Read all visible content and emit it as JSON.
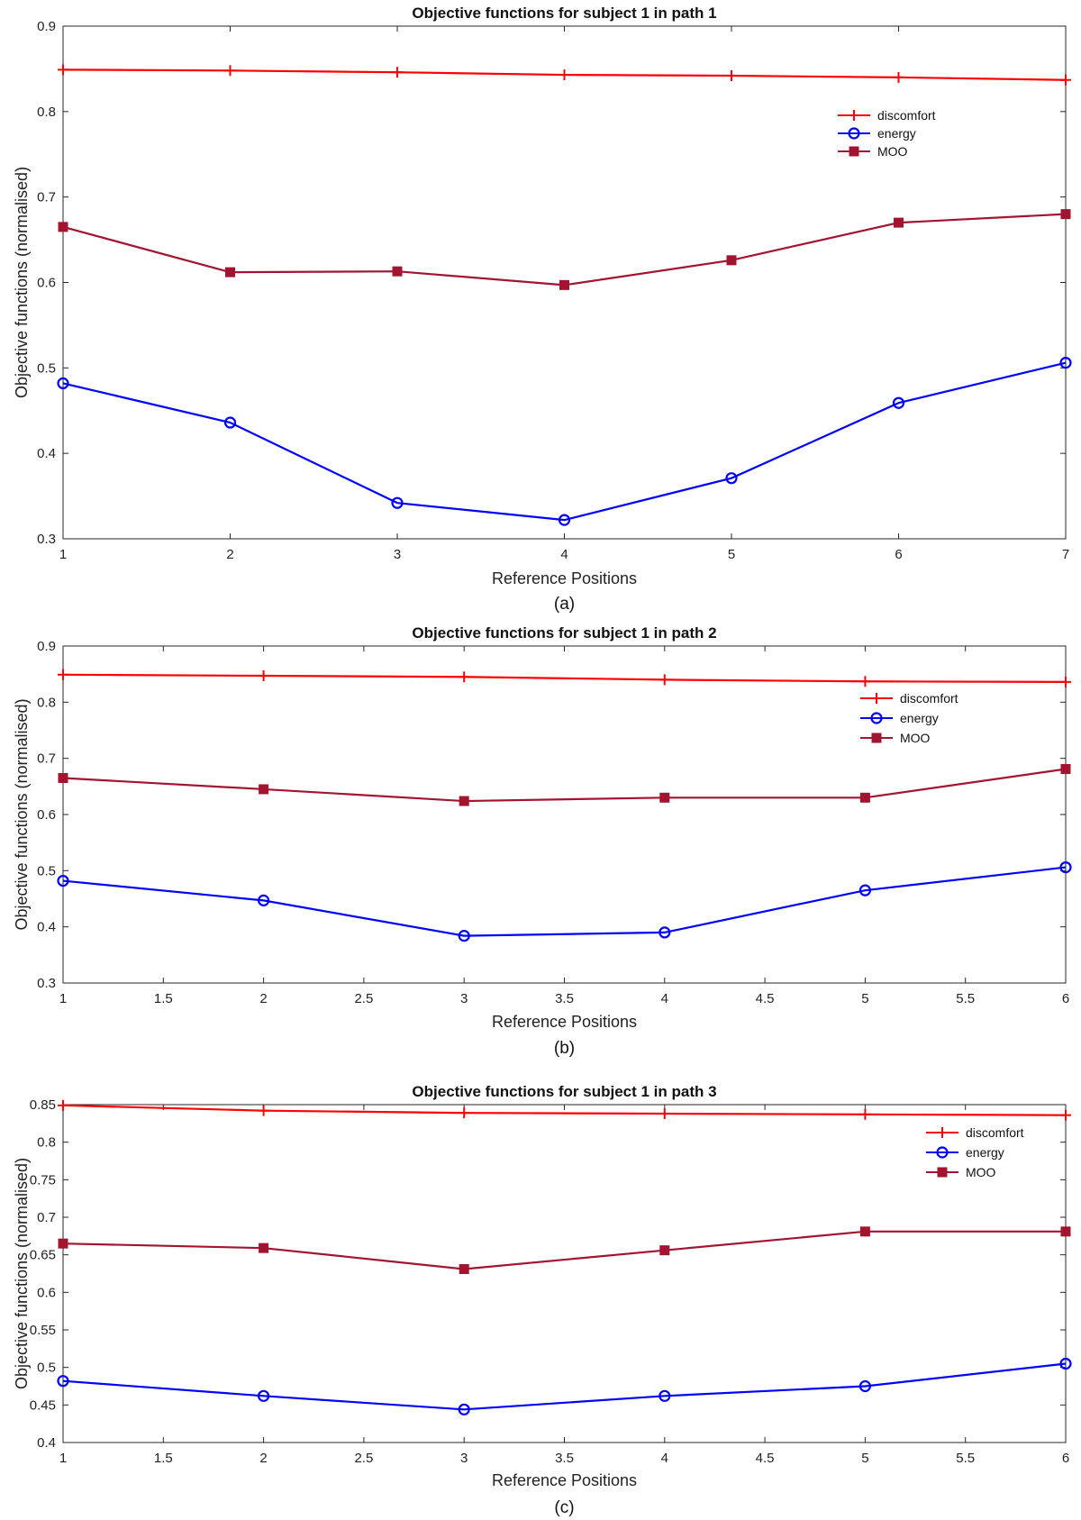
{
  "chart_data": [
    {
      "type": "line",
      "caption": "(a)",
      "title": "Objective functions for subject 1 in path 1",
      "xlabel": "Reference Positions",
      "ylabel": "Objective functions (normalised)",
      "xlim": [
        1,
        7
      ],
      "ylim": [
        0.3,
        0.9
      ],
      "xticks": [
        1,
        2,
        3,
        4,
        5,
        6,
        7
      ],
      "xtick_labels": [
        "1",
        "2",
        "3",
        "4",
        "5",
        "6",
        "7"
      ],
      "yticks": [
        0.3,
        0.4,
        0.5,
        0.6,
        0.7,
        0.8,
        0.9
      ],
      "ytick_labels": [
        "0.3",
        "0.4",
        "0.5",
        "0.6",
        "0.7",
        "0.8",
        "0.9"
      ],
      "grid": false,
      "legend_position": "top-right",
      "x": [
        1,
        2,
        3,
        4,
        5,
        6,
        7
      ],
      "series": [
        {
          "name": "discomfort",
          "color": "#ff0000",
          "marker": "plus",
          "values": [
            0.849,
            0.848,
            0.846,
            0.843,
            0.842,
            0.84,
            0.837
          ]
        },
        {
          "name": "energy",
          "color": "#0000ff",
          "marker": "circle",
          "values": [
            0.482,
            0.436,
            0.342,
            0.322,
            0.371,
            0.459,
            0.506
          ]
        },
        {
          "name": "MOO",
          "color": "#a2142f",
          "marker": "square",
          "values": [
            0.665,
            0.612,
            0.613,
            0.597,
            0.626,
            0.67,
            0.68
          ]
        }
      ]
    },
    {
      "type": "line",
      "caption": "(b)",
      "title": "Objective functions for subject 1 in path 2",
      "xlabel": "Reference Positions",
      "ylabel": "Objective functions (normalised)",
      "xlim": [
        1,
        6
      ],
      "ylim": [
        0.3,
        0.9
      ],
      "xticks": [
        1,
        1.5,
        2,
        2.5,
        3,
        3.5,
        4,
        4.5,
        5,
        5.5,
        6
      ],
      "xtick_labels": [
        "1",
        "1.5",
        "2",
        "2.5",
        "3",
        "3.5",
        "4",
        "4.5",
        "5",
        "5.5",
        "6"
      ],
      "yticks": [
        0.3,
        0.4,
        0.5,
        0.6,
        0.7,
        0.8,
        0.9
      ],
      "ytick_labels": [
        "0.3",
        "0.4",
        "0.5",
        "0.6",
        "0.7",
        "0.8",
        "0.9"
      ],
      "grid": false,
      "legend_position": "top-right",
      "x": [
        1,
        2,
        3,
        4,
        5,
        6
      ],
      "series": [
        {
          "name": "discomfort",
          "color": "#ff0000",
          "marker": "plus",
          "values": [
            0.849,
            0.847,
            0.845,
            0.84,
            0.837,
            0.836
          ]
        },
        {
          "name": "energy",
          "color": "#0000ff",
          "marker": "circle",
          "values": [
            0.482,
            0.447,
            0.384,
            0.39,
            0.465,
            0.506
          ]
        },
        {
          "name": "MOO",
          "color": "#a2142f",
          "marker": "square",
          "values": [
            0.665,
            0.645,
            0.624,
            0.63,
            0.63,
            0.681
          ]
        }
      ]
    },
    {
      "type": "line",
      "caption": "(c)",
      "title": "Objective functions for subject 1 in path 3",
      "xlabel": "Reference Positions",
      "ylabel": "Objective functions (normalised)",
      "xlim": [
        1,
        6
      ],
      "ylim": [
        0.4,
        0.85
      ],
      "xticks": [
        1,
        1.5,
        2,
        2.5,
        3,
        3.5,
        4,
        4.5,
        5,
        5.5,
        6
      ],
      "xtick_labels": [
        "1",
        "1.5",
        "2",
        "2.5",
        "3",
        "3.5",
        "4",
        "4.5",
        "5",
        "5.5",
        "6"
      ],
      "yticks": [
        0.4,
        0.45,
        0.5,
        0.55,
        0.6,
        0.65,
        0.7,
        0.75,
        0.8,
        0.85
      ],
      "ytick_labels": [
        "0.4",
        "0.45",
        "0.5",
        "0.55",
        "0.6",
        "0.65",
        "0.7",
        "0.75",
        "0.8",
        "0.85"
      ],
      "grid": false,
      "legend_position": "top-right",
      "x": [
        1,
        2,
        3,
        4,
        5,
        6
      ],
      "series": [
        {
          "name": "discomfort",
          "color": "#ff0000",
          "marker": "plus",
          "values": [
            0.849,
            0.842,
            0.839,
            0.838,
            0.837,
            0.836
          ]
        },
        {
          "name": "energy",
          "color": "#0000ff",
          "marker": "circle",
          "values": [
            0.482,
            0.462,
            0.444,
            0.462,
            0.475,
            0.505
          ]
        },
        {
          "name": "MOO",
          "color": "#a2142f",
          "marker": "square",
          "values": [
            0.665,
            0.659,
            0.631,
            0.656,
            0.681,
            0.681
          ]
        }
      ]
    }
  ]
}
